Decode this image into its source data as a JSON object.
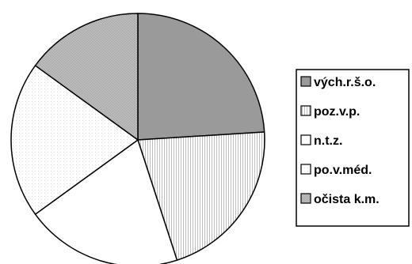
{
  "chart_data": {
    "type": "pie",
    "title": "",
    "categories": [
      "vých.r.š.o.",
      "poz.v.p.",
      "n.t.z.",
      "po.v.méd.",
      "očista k.m."
    ],
    "values": [
      24,
      21,
      20,
      20,
      15
    ],
    "start_angle_deg": 0,
    "direction": "clockwise",
    "legend": {
      "placement": "right",
      "entries": [
        "vých.r.š.o.",
        "poz.v.p.",
        "n.t.z.",
        "po.v.méd.",
        "očista k.m."
      ]
    },
    "colors": [
      "#9a9a9a",
      "#e4e4e4",
      "#ffffff",
      "#ffffff",
      "#b8b8b8"
    ],
    "patterns": [
      "solid",
      "lines",
      "none",
      "dots-faint",
      "dots"
    ]
  }
}
